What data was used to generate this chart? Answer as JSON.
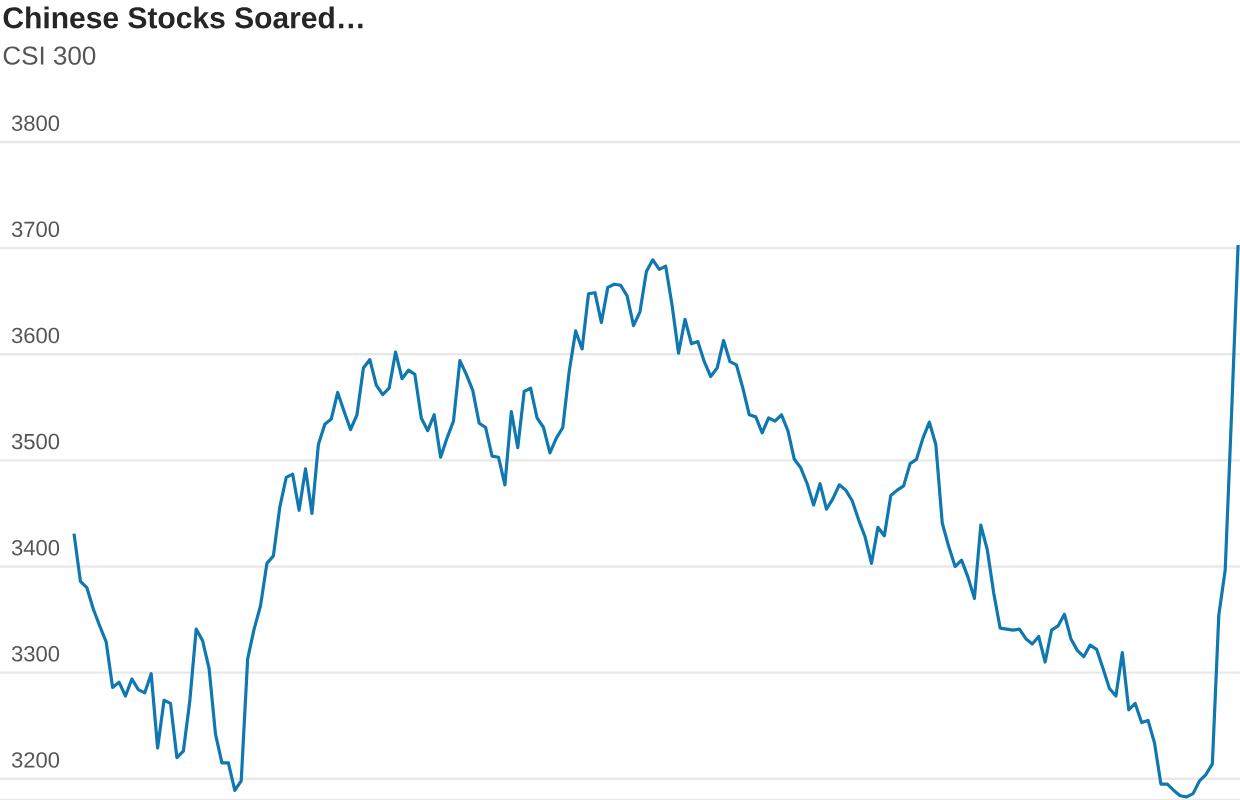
{
  "chart_data": {
    "type": "line",
    "title": "Chinese Stocks Soared…",
    "subtitle": "CSI 300",
    "categories": [
      null,
      null,
      null,
      null,
      null,
      null,
      null,
      null,
      null,
      null,
      null,
      null,
      null,
      null,
      null,
      null,
      null,
      null,
      null,
      null,
      null,
      null,
      null,
      null,
      null,
      null,
      null,
      null,
      null,
      null,
      null,
      null,
      null,
      null,
      null,
      null,
      null,
      null,
      null,
      null,
      null,
      null,
      null,
      null,
      null,
      null,
      null,
      null,
      null,
      null,
      null,
      null,
      null,
      null,
      null,
      null,
      null,
      null,
      null,
      null,
      null,
      null,
      null,
      null,
      null,
      null,
      null,
      null,
      null,
      null,
      null,
      null,
      null,
      null,
      null,
      null,
      null,
      null,
      null,
      null,
      null,
      null,
      null,
      null,
      null,
      null,
      null,
      null,
      null,
      null,
      null,
      null,
      null,
      null,
      null,
      null,
      null,
      null,
      null,
      null,
      null,
      null,
      null,
      null,
      null,
      null,
      null,
      null,
      null,
      null,
      null,
      null,
      null,
      null,
      null,
      null,
      null,
      null,
      null,
      null,
      null,
      null,
      null,
      null,
      null,
      null,
      null,
      null,
      null,
      null,
      null,
      null,
      null,
      null,
      null,
      null,
      null,
      null,
      null,
      null,
      null,
      null,
      null,
      null,
      null,
      null,
      null,
      null,
      null,
      null,
      null,
      null,
      null,
      null,
      null,
      null,
      null,
      null,
      null,
      null,
      null,
      null,
      null,
      null,
      null,
      null,
      null,
      null,
      null,
      null,
      null,
      null,
      null,
      null,
      null,
      null,
      null,
      null,
      null,
      null,
      null,
      null
    ],
    "values": [
      3431,
      3386,
      3380,
      3360,
      3344,
      3329,
      3286,
      3291,
      3278,
      3294,
      3284,
      3281,
      3299,
      3229,
      3274,
      3271,
      3220,
      3226,
      3273,
      3341,
      3330,
      3304,
      3242,
      3215,
      3215,
      3189,
      3198,
      3313,
      3341,
      3363,
      3403,
      3410,
      3456,
      3484,
      3487,
      3453,
      3492,
      3450,
      3515,
      3534,
      3539,
      3564,
      3546,
      3529,
      3543,
      3587,
      3595,
      3571,
      3562,
      3568,
      3602,
      3577,
      3585,
      3581,
      3540,
      3528,
      3543,
      3503,
      3521,
      3537,
      3594,
      3581,
      3566,
      3535,
      3531,
      3504,
      3503,
      3477,
      3546,
      3512,
      3565,
      3568,
      3540,
      3531,
      3507,
      3521,
      3531,
      3584,
      3622,
      3605,
      3657,
      3658,
      3630,
      3663,
      3666,
      3665,
      3655,
      3627,
      3640,
      3678,
      3689,
      3680,
      3683,
      3646,
      3601,
      3633,
      3610,
      3612,
      3593,
      3579,
      3587,
      3613,
      3593,
      3590,
      3568,
      3543,
      3541,
      3526,
      3540,
      3537,
      3543,
      3528,
      3501,
      3493,
      3478,
      3458,
      3478,
      3454,
      3464,
      3477,
      3472,
      3462,
      3444,
      3428,
      3403,
      3437,
      3429,
      3467,
      3472,
      3476,
      3497,
      3501,
      3521,
      3536,
      3515,
      3441,
      3419,
      3400,
      3406,
      3390,
      3370,
      3439,
      3416,
      3375,
      3342,
      3341,
      3340,
      3341,
      3332,
      3327,
      3334,
      3310,
      3340,
      3344,
      3355,
      3332,
      3321,
      3315,
      3326,
      3322,
      3304,
      3285,
      3278,
      3319,
      3265,
      3271,
      3253,
      3255,
      3234,
      3195,
      3195,
      3189,
      3184,
      3183,
      3186,
      3198,
      3204,
      3214,
      3354,
      3397,
      3546,
      3703
    ],
    "color": "#0f78b0",
    "ylim": [
      3180,
      3800
    ],
    "yticks": [
      3200,
      3300,
      3400,
      3500,
      3600,
      3700,
      3800
    ],
    "grid": "y",
    "tick_labels": "y"
  }
}
